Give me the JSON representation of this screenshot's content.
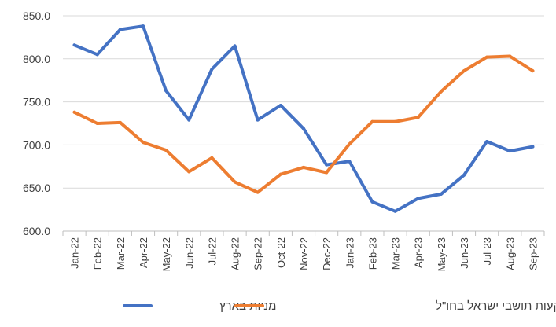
{
  "chart_data": {
    "type": "line",
    "title": "",
    "xlabel": "",
    "ylabel": "",
    "categories": [
      "Jan-22",
      "Feb-22",
      "Mar-22",
      "Apr-22",
      "May-22",
      "Jun-22",
      "Jul-22",
      "Aug-22",
      "Sep-22",
      "Oct-22",
      "Nov-22",
      "Dec-22",
      "Jan-23",
      "Feb-23",
      "Mar-23",
      "Apr-23",
      "May-23",
      "Jun-23",
      "Jul-23",
      "Aug-23",
      "Sep-23"
    ],
    "ylim": [
      600,
      850
    ],
    "yticks": [
      "600.0",
      "650.0",
      "700.0",
      "750.0",
      "800.0",
      "850.0"
    ],
    "grid": "horizontal",
    "legend_position": "bottom",
    "series": [
      {
        "name": "מניות בארץ",
        "color": "#4472C4",
        "values": [
          816,
          805,
          834,
          838,
          763,
          729,
          788,
          815,
          729,
          746,
          719,
          677,
          681,
          634,
          623,
          638,
          643,
          665,
          704,
          693,
          698
        ]
      },
      {
        "name": "השקעות תושבי ישראל בחו\"ל",
        "color": "#ED7D31",
        "values": [
          738,
          725,
          726,
          703,
          694,
          669,
          685,
          657,
          645,
          666,
          674,
          668,
          701,
          727,
          727,
          732,
          762,
          786,
          802,
          803,
          786
        ]
      }
    ]
  }
}
